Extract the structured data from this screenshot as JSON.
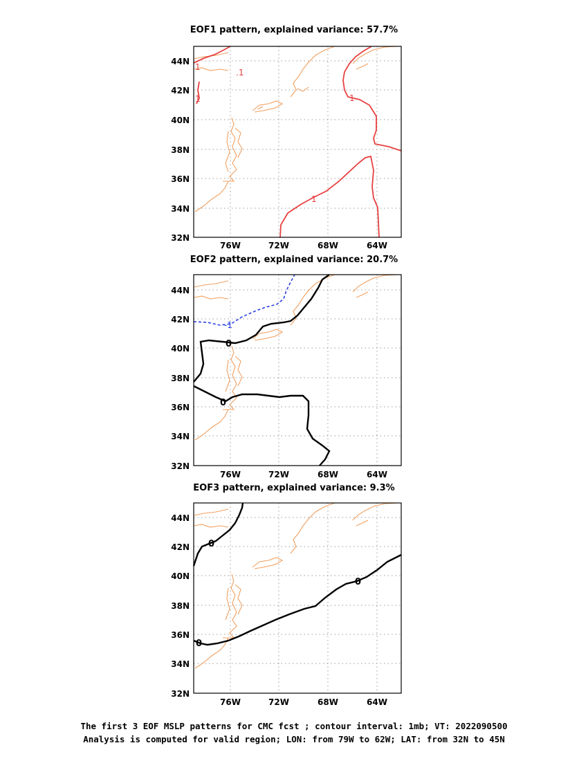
{
  "panels": [
    {
      "title": "EOF1 pattern, explained variance: 57.7%",
      "contour_labels": [
        "1",
        "1",
        ".1",
        "1",
        "1"
      ]
    },
    {
      "title": "EOF2 pattern, explained variance: 20.7%",
      "contour_labels": [
        "-1",
        "0",
        "0"
      ]
    },
    {
      "title": "EOF3 pattern, explained variance: 9.3%",
      "contour_labels": [
        "0",
        "0",
        "0"
      ]
    }
  ],
  "axes": {
    "lat_ticks": [
      "44N",
      "42N",
      "40N",
      "38N",
      "36N",
      "34N",
      "32N"
    ],
    "lon_ticks": [
      "76W",
      "72W",
      "68W",
      "64W"
    ]
  },
  "colors": {
    "positive_contour": "#e84040",
    "zero_contour": "#000000",
    "negative_contour": "#2a3ee0",
    "coastline": "#f0a060"
  },
  "footer": {
    "line1": "The first 3 EOF MSLP patterns for CMC fcst ; contour interval: 1mb; VT: 2022090500",
    "line2": "Analysis is computed for valid region; LON: from 79W to 62W; LAT: from 32N to 45N"
  }
}
